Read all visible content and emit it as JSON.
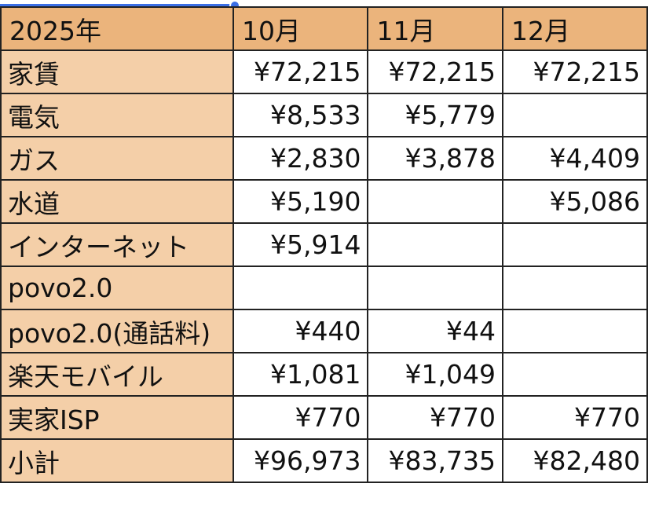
{
  "colors": {
    "header_fill": "#ebb47c",
    "row_label_fill": "#f4cfa8",
    "selection": "#3b6fe6"
  },
  "table": {
    "header": [
      "2025年",
      "10月",
      "11月",
      "12月"
    ],
    "rows": [
      {
        "label": "家賃",
        "values": [
          "¥72,215",
          "¥72,215",
          "¥72,215"
        ]
      },
      {
        "label": "電気",
        "values": [
          "¥8,533",
          "¥5,779",
          ""
        ]
      },
      {
        "label": "ガス",
        "values": [
          "¥2,830",
          "¥3,878",
          "¥4,409"
        ]
      },
      {
        "label": "水道",
        "values": [
          "¥5,190",
          "",
          "¥5,086"
        ]
      },
      {
        "label": "インターネット",
        "values": [
          "¥5,914",
          "",
          ""
        ]
      },
      {
        "label": "povo2.0",
        "values": [
          "",
          "",
          ""
        ]
      },
      {
        "label": "povo2.0(通話料)",
        "values": [
          "¥440",
          "¥44",
          ""
        ]
      },
      {
        "label": "楽天モバイル",
        "values": [
          "¥1,081",
          "¥1,049",
          ""
        ]
      },
      {
        "label": "実家ISP",
        "values": [
          "¥770",
          "¥770",
          "¥770"
        ]
      },
      {
        "label": "小計",
        "values": [
          "¥96,973",
          "¥83,735",
          "¥82,480"
        ]
      }
    ]
  }
}
